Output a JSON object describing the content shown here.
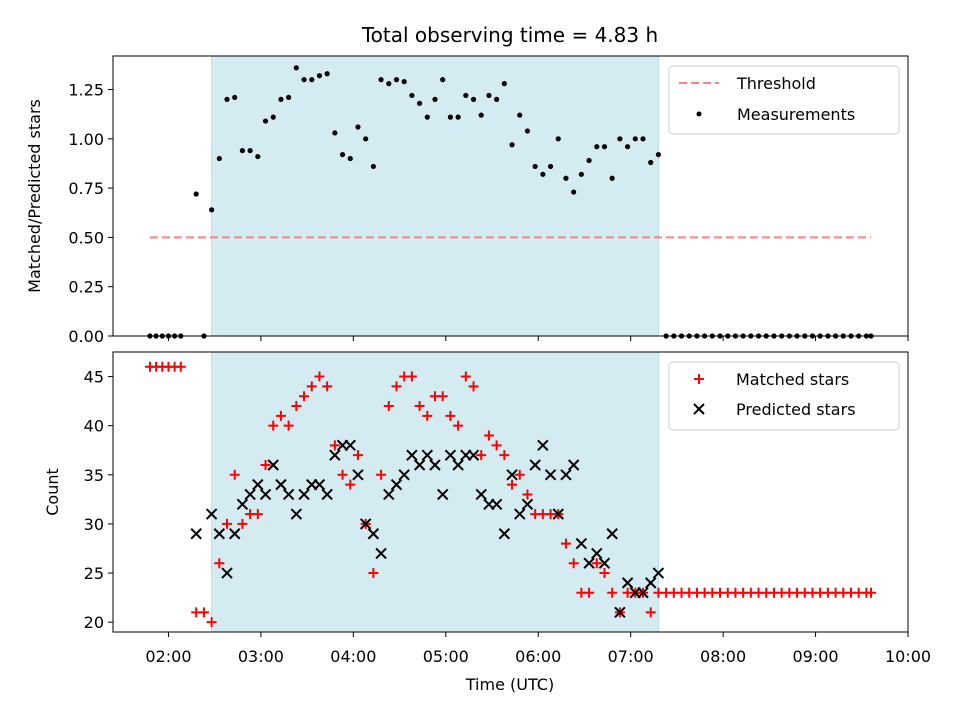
{
  "chart_data": {
    "title": "Total observing time = 4.83 h",
    "shaded_interval": [
      "02:28",
      "07:18"
    ],
    "x_axis": {
      "label": "Time (UTC)",
      "range": [
        "01:24",
        "10:00"
      ],
      "tick_labels": [
        "02:00",
        "03:00",
        "04:00",
        "05:00",
        "06:00",
        "07:00",
        "08:00",
        "09:00",
        "10:00"
      ],
      "tick_values": [
        "02:00",
        "03:00",
        "04:00",
        "05:00",
        "06:00",
        "07:00",
        "08:00",
        "09:00",
        "10:00"
      ]
    },
    "colors": {
      "shade": "#d4ebf2",
      "threshold": "#ff7f7f",
      "measurements": "#000000",
      "matched": "#ff0000",
      "predicted": "#000000"
    },
    "top_panel": {
      "type": "scatter",
      "ylabel": "Matched/Predicted stars",
      "ylim": [
        0,
        1.42
      ],
      "y_ticks": [
        0,
        0.25,
        0.5,
        0.75,
        1.0,
        1.25
      ],
      "y_tick_labels": [
        "0.00",
        "0.25",
        "0.50",
        "0.75",
        "1.00",
        "1.25"
      ],
      "legend": {
        "placement": "top-right",
        "entries": [
          "Threshold",
          "Measurements"
        ]
      },
      "threshold": {
        "name": "Threshold",
        "y": 0.5,
        "x": [
          "01:48",
          "09:36"
        ]
      },
      "measurements": {
        "name": "Measurements",
        "points": [
          [
            "01:48",
            0
          ],
          [
            "01:52",
            0
          ],
          [
            "01:56",
            0
          ],
          [
            "02:00",
            0
          ],
          [
            "02:04",
            0
          ],
          [
            "02:08",
            0
          ],
          [
            "02:18",
            0.72
          ],
          [
            "02:23",
            0
          ],
          [
            "02:28",
            0.64
          ],
          [
            "02:33",
            0.9
          ],
          [
            "02:38",
            1.2
          ],
          [
            "02:43",
            1.21
          ],
          [
            "02:48",
            0.94
          ],
          [
            "02:53",
            0.94
          ],
          [
            "02:58",
            0.91
          ],
          [
            "03:03",
            1.09
          ],
          [
            "03:08",
            1.11
          ],
          [
            "03:13",
            1.2
          ],
          [
            "03:18",
            1.21
          ],
          [
            "03:23",
            1.36
          ],
          [
            "03:28",
            1.3
          ],
          [
            "03:33",
            1.3
          ],
          [
            "03:38",
            1.32
          ],
          [
            "03:43",
            1.33
          ],
          [
            "03:48",
            1.03
          ],
          [
            "03:53",
            0.92
          ],
          [
            "03:58",
            0.9
          ],
          [
            "04:03",
            1.06
          ],
          [
            "04:08",
            1.0
          ],
          [
            "04:13",
            0.86
          ],
          [
            "04:18",
            1.3
          ],
          [
            "04:23",
            1.28
          ],
          [
            "04:28",
            1.3
          ],
          [
            "04:33",
            1.29
          ],
          [
            "04:38",
            1.22
          ],
          [
            "04:43",
            1.18
          ],
          [
            "04:48",
            1.11
          ],
          [
            "04:53",
            1.2
          ],
          [
            "04:58",
            1.3
          ],
          [
            "05:03",
            1.11
          ],
          [
            "05:08",
            1.11
          ],
          [
            "05:13",
            1.22
          ],
          [
            "05:18",
            1.2
          ],
          [
            "05:23",
            1.12
          ],
          [
            "05:28",
            1.22
          ],
          [
            "05:33",
            1.2
          ],
          [
            "05:38",
            1.28
          ],
          [
            "05:43",
            0.97
          ],
          [
            "05:48",
            1.12
          ],
          [
            "05:53",
            1.04
          ],
          [
            "05:58",
            0.86
          ],
          [
            "06:03",
            0.82
          ],
          [
            "06:08",
            0.86
          ],
          [
            "06:13",
            1.0
          ],
          [
            "06:18",
            0.8
          ],
          [
            "06:23",
            0.73
          ],
          [
            "06:28",
            0.82
          ],
          [
            "06:33",
            0.89
          ],
          [
            "06:38",
            0.96
          ],
          [
            "06:43",
            0.96
          ],
          [
            "06:48",
            0.8
          ],
          [
            "06:53",
            1.0
          ],
          [
            "06:58",
            0.96
          ],
          [
            "07:03",
            1.0
          ],
          [
            "07:08",
            1.0
          ],
          [
            "07:13",
            0.88
          ],
          [
            "07:18",
            0.92
          ],
          [
            "07:23",
            0
          ],
          [
            "07:28",
            0
          ],
          [
            "07:33",
            0
          ],
          [
            "07:38",
            0
          ],
          [
            "07:43",
            0
          ],
          [
            "07:48",
            0
          ],
          [
            "07:53",
            0
          ],
          [
            "07:58",
            0
          ],
          [
            "08:03",
            0
          ],
          [
            "08:08",
            0
          ],
          [
            "08:13",
            0
          ],
          [
            "08:18",
            0
          ],
          [
            "08:23",
            0
          ],
          [
            "08:28",
            0
          ],
          [
            "08:33",
            0
          ],
          [
            "08:38",
            0
          ],
          [
            "08:43",
            0
          ],
          [
            "08:48",
            0
          ],
          [
            "08:53",
            0
          ],
          [
            "08:58",
            0
          ],
          [
            "09:03",
            0
          ],
          [
            "09:08",
            0
          ],
          [
            "09:13",
            0
          ],
          [
            "09:18",
            0
          ],
          [
            "09:23",
            0
          ],
          [
            "09:28",
            0
          ],
          [
            "09:33",
            0
          ],
          [
            "09:36",
            0
          ]
        ]
      }
    },
    "bottom_panel": {
      "type": "scatter",
      "ylabel": "Count",
      "ylim": [
        19,
        47.5
      ],
      "y_ticks": [
        20,
        25,
        30,
        35,
        40,
        45
      ],
      "y_tick_labels": [
        "20",
        "25",
        "30",
        "35",
        "40",
        "45"
      ],
      "legend": {
        "placement": "top-right",
        "entries": [
          "Matched stars",
          "Predicted stars"
        ]
      },
      "series": [
        {
          "name": "Matched stars",
          "marker": "plus",
          "points": [
            [
              "01:48",
              46
            ],
            [
              "01:52",
              46
            ],
            [
              "01:56",
              46
            ],
            [
              "02:00",
              46
            ],
            [
              "02:04",
              46
            ],
            [
              "02:08",
              46
            ],
            [
              "02:18",
              21
            ],
            [
              "02:23",
              21
            ],
            [
              "02:28",
              20
            ],
            [
              "02:33",
              26
            ],
            [
              "02:38",
              30
            ],
            [
              "02:43",
              35
            ],
            [
              "02:48",
              30
            ],
            [
              "02:53",
              31
            ],
            [
              "02:58",
              31
            ],
            [
              "03:03",
              36
            ],
            [
              "03:08",
              40
            ],
            [
              "03:13",
              41
            ],
            [
              "03:18",
              40
            ],
            [
              "03:23",
              42
            ],
            [
              "03:28",
              43
            ],
            [
              "03:33",
              44
            ],
            [
              "03:38",
              45
            ],
            [
              "03:43",
              44
            ],
            [
              "03:48",
              38
            ],
            [
              "03:53",
              35
            ],
            [
              "03:58",
              34
            ],
            [
              "04:03",
              37
            ],
            [
              "04:08",
              30
            ],
            [
              "04:13",
              25
            ],
            [
              "04:18",
              35
            ],
            [
              "04:23",
              42
            ],
            [
              "04:28",
              44
            ],
            [
              "04:33",
              45
            ],
            [
              "04:38",
              45
            ],
            [
              "04:43",
              42
            ],
            [
              "04:48",
              41
            ],
            [
              "04:53",
              43
            ],
            [
              "04:58",
              43
            ],
            [
              "05:03",
              41
            ],
            [
              "05:08",
              40
            ],
            [
              "05:13",
              45
            ],
            [
              "05:18",
              44
            ],
            [
              "05:23",
              37
            ],
            [
              "05:28",
              39
            ],
            [
              "05:33",
              38
            ],
            [
              "05:38",
              37
            ],
            [
              "05:43",
              34
            ],
            [
              "05:48",
              35
            ],
            [
              "05:53",
              33
            ],
            [
              "05:58",
              31
            ],
            [
              "06:03",
              31
            ],
            [
              "06:08",
              31
            ],
            [
              "06:13",
              31
            ],
            [
              "06:18",
              28
            ],
            [
              "06:23",
              26
            ],
            [
              "06:28",
              23
            ],
            [
              "06:33",
              23
            ],
            [
              "06:38",
              26
            ],
            [
              "06:43",
              25
            ],
            [
              "06:48",
              23
            ],
            [
              "06:53",
              21
            ],
            [
              "06:58",
              23
            ],
            [
              "07:03",
              23
            ],
            [
              "07:08",
              23
            ],
            [
              "07:13",
              21
            ],
            [
              "07:18",
              23
            ],
            [
              "07:23",
              23
            ],
            [
              "07:28",
              23
            ],
            [
              "07:33",
              23
            ],
            [
              "07:38",
              23
            ],
            [
              "07:43",
              23
            ],
            [
              "07:48",
              23
            ],
            [
              "07:53",
              23
            ],
            [
              "07:58",
              23
            ],
            [
              "08:03",
              23
            ],
            [
              "08:08",
              23
            ],
            [
              "08:13",
              23
            ],
            [
              "08:18",
              23
            ],
            [
              "08:23",
              23
            ],
            [
              "08:28",
              23
            ],
            [
              "08:33",
              23
            ],
            [
              "08:38",
              23
            ],
            [
              "08:43",
              23
            ],
            [
              "08:48",
              23
            ],
            [
              "08:53",
              23
            ],
            [
              "08:58",
              23
            ],
            [
              "09:03",
              23
            ],
            [
              "09:08",
              23
            ],
            [
              "09:13",
              23
            ],
            [
              "09:18",
              23
            ],
            [
              "09:23",
              23
            ],
            [
              "09:28",
              23
            ],
            [
              "09:33",
              23
            ],
            [
              "09:36",
              23
            ]
          ]
        },
        {
          "name": "Predicted stars",
          "marker": "x",
          "points": [
            [
              "02:18",
              29
            ],
            [
              "02:28",
              31
            ],
            [
              "02:33",
              29
            ],
            [
              "02:38",
              25
            ],
            [
              "02:43",
              29
            ],
            [
              "02:48",
              32
            ],
            [
              "02:53",
              33
            ],
            [
              "02:58",
              34
            ],
            [
              "03:03",
              33
            ],
            [
              "03:08",
              36
            ],
            [
              "03:13",
              34
            ],
            [
              "03:18",
              33
            ],
            [
              "03:23",
              31
            ],
            [
              "03:28",
              33
            ],
            [
              "03:33",
              34
            ],
            [
              "03:38",
              34
            ],
            [
              "03:43",
              33
            ],
            [
              "03:48",
              37
            ],
            [
              "03:53",
              38
            ],
            [
              "03:58",
              38
            ],
            [
              "04:03",
              35
            ],
            [
              "04:08",
              30
            ],
            [
              "04:13",
              29
            ],
            [
              "04:18",
              27
            ],
            [
              "04:23",
              33
            ],
            [
              "04:28",
              34
            ],
            [
              "04:33",
              35
            ],
            [
              "04:38",
              37
            ],
            [
              "04:43",
              36
            ],
            [
              "04:48",
              37
            ],
            [
              "04:53",
              36
            ],
            [
              "04:58",
              33
            ],
            [
              "05:03",
              37
            ],
            [
              "05:08",
              36
            ],
            [
              "05:13",
              37
            ],
            [
              "05:18",
              37
            ],
            [
              "05:23",
              33
            ],
            [
              "05:28",
              32
            ],
            [
              "05:33",
              32
            ],
            [
              "05:38",
              29
            ],
            [
              "05:43",
              35
            ],
            [
              "05:48",
              31
            ],
            [
              "05:53",
              32
            ],
            [
              "05:58",
              36
            ],
            [
              "06:03",
              38
            ],
            [
              "06:08",
              35
            ],
            [
              "06:13",
              31
            ],
            [
              "06:18",
              35
            ],
            [
              "06:23",
              36
            ],
            [
              "06:28",
              28
            ],
            [
              "06:33",
              26
            ],
            [
              "06:38",
              27
            ],
            [
              "06:43",
              26
            ],
            [
              "06:48",
              29
            ],
            [
              "06:53",
              21
            ],
            [
              "06:58",
              24
            ],
            [
              "07:03",
              23
            ],
            [
              "07:08",
              23
            ],
            [
              "07:13",
              24
            ],
            [
              "07:18",
              25
            ]
          ]
        }
      ]
    }
  }
}
